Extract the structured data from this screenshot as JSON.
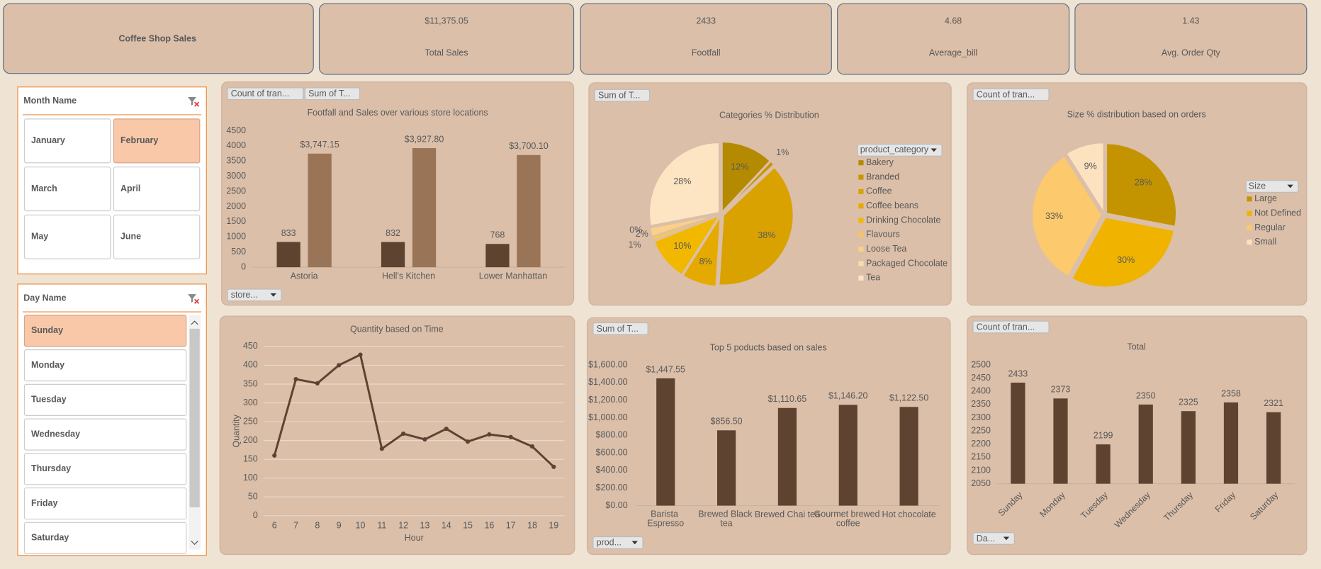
{
  "title": "Coffee Shop Sales",
  "kpis": [
    {
      "value": "$11,375.05",
      "label": "Total Sales"
    },
    {
      "value": 2433,
      "label": "Footfall"
    },
    {
      "value": 4.68,
      "label": "Average_bill"
    },
    {
      "value": 1.43,
      "label": "Avg. Order Qty"
    }
  ],
  "slicers": [
    {
      "title": "Month Name",
      "items": [
        "January",
        "February",
        "March",
        "April",
        "May",
        "June"
      ],
      "selected": "February"
    },
    {
      "title": "Day Name",
      "items": [
        "Sunday",
        "Monday",
        "Tuesday",
        "Wednesday",
        "Thursday",
        "Friday",
        "Saturday"
      ],
      "selected": "Sunday"
    }
  ],
  "chart_data": [
    {
      "type": "bar",
      "title": "Footfall and Sales over various store locations",
      "categories": [
        "Astoria",
        "Hell's Kitchen",
        "Lower Manhattan"
      ],
      "series": [
        {
          "name": "Count of tran...",
          "color": "#5e4330",
          "values": [
            833,
            832,
            768
          ]
        },
        {
          "name": "Sum of T...",
          "color": "#9a7457",
          "values": [
            3747.15,
            3927.8,
            3700.1
          ],
          "value_labels": [
            "$3,747.15",
            "$3,927.80",
            "$3,700.10"
          ]
        }
      ],
      "ylim": [
        0,
        4500
      ],
      "yticks": [
        0,
        500,
        1000,
        1500,
        2000,
        2500,
        3000,
        3500,
        4000,
        4500
      ],
      "grid": false,
      "filter_button": "store..."
    },
    {
      "type": "pie",
      "title": "Categories % Distribution",
      "value_field": "Sum of T...",
      "legend_title": "product_category",
      "categories": [
        "Bakery",
        "Branded",
        "Coffee",
        "Coffee beans",
        "Drinking Chocolate",
        "Flavours",
        "Loose Tea",
        "Packaged Chocolate",
        "Tea"
      ],
      "values": [
        12,
        1,
        38,
        8,
        10,
        1,
        2,
        0,
        28
      ],
      "value_labels": [
        "12%",
        "1%",
        "38%",
        "8%",
        "10%",
        "1%",
        "2%",
        "0%",
        "28%"
      ],
      "colors": [
        "#b38a00",
        "#c99500",
        "#d9a200",
        "#e5aa00",
        "#f2b800",
        "#f7c55c",
        "#fad08a",
        "#fcdcaa",
        "#fde5c4"
      ],
      "legend": "right"
    },
    {
      "type": "pie",
      "title": "Size % distribution based on orders",
      "value_field": "Count of tran...",
      "legend_title": "Size",
      "categories": [
        "Large",
        "Not Defined",
        "Regular",
        "Small"
      ],
      "values": [
        28,
        30,
        33,
        9
      ],
      "value_labels": [
        "28%",
        "30%",
        "33%",
        "9%"
      ],
      "colors": [
        "#c49400",
        "#efb300",
        "#fcc96c",
        "#fde2bf"
      ],
      "legend": "right"
    },
    {
      "type": "line",
      "title": "Quantity based on Time",
      "xlabel": "Hour",
      "ylabel": "Quantity",
      "x": [
        6,
        7,
        8,
        9,
        10,
        11,
        12,
        13,
        14,
        15,
        16,
        17,
        18,
        19
      ],
      "series": [
        {
          "name": "Quantity",
          "color": "#5e4330",
          "values": [
            160,
            363,
            352,
            400,
            428,
            178,
            218,
            203,
            231,
            197,
            216,
            209,
            184,
            130
          ]
        }
      ],
      "xlim": [
        5.5,
        19.5
      ],
      "xticks": [
        6,
        7,
        8,
        9,
        10,
        11,
        12,
        13,
        14,
        15,
        16,
        17,
        18,
        19
      ],
      "ylim": [
        0,
        450
      ],
      "yticks": [
        0,
        50,
        100,
        150,
        200,
        250,
        300,
        350,
        400,
        450
      ],
      "grid": true
    },
    {
      "type": "bar",
      "title": "Top 5 poducts based on sales",
      "categories": [
        "Barista Espresso",
        "Brewed Black tea",
        "Brewed Chai tea",
        "Gourmet brewed coffee",
        "Hot chocolate"
      ],
      "series": [
        {
          "name": "Sum of T...",
          "color": "#5e4330",
          "values": [
            1447.55,
            856.5,
            1110.65,
            1146.2,
            1122.5
          ],
          "value_labels": [
            "$1,447.55",
            "$856.50",
            "$1,110.65",
            "$1,146.20",
            "$1,122.50"
          ]
        }
      ],
      "ylim": [
        0,
        1600
      ],
      "yticks": [
        {
          "value": 0,
          "label": "$0.00"
        },
        {
          "value": 200,
          "label": "$200.00"
        },
        {
          "value": 400,
          "label": "$400.00"
        },
        {
          "value": 600,
          "label": "$600.00"
        },
        {
          "value": 800,
          "label": "$800.00"
        },
        {
          "value": 1000,
          "label": "$1,000.00"
        },
        {
          "value": 1200,
          "label": "$1,200.00"
        },
        {
          "value": 1400,
          "label": "$1,400.00"
        },
        {
          "value": 1600,
          "label": "$1,600.00"
        }
      ],
      "grid": false,
      "filter_button": "prod..."
    },
    {
      "type": "bar",
      "title": "Total",
      "categories": [
        "Sunday",
        "Monday",
        "Tuesday",
        "Wednesday",
        "Thursday",
        "Friday",
        "Saturday"
      ],
      "series": [
        {
          "name": "Count of tran...",
          "color": "#5e4330",
          "values": [
            2433,
            2373,
            2199,
            2350,
            2325,
            2358,
            2321
          ]
        }
      ],
      "ylim": [
        2050,
        2500
      ],
      "yticks": [
        2050,
        2100,
        2150,
        2200,
        2250,
        2300,
        2350,
        2400,
        2450,
        2500
      ],
      "grid": false,
      "rotate_labels": true,
      "filter_button": "Da..."
    }
  ]
}
